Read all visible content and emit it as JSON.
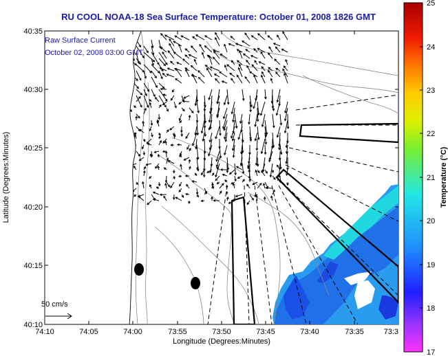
{
  "title": "RU COOL  NOAA-18  Sea Surface Temperature:  October 01, 2008 1826 GMT",
  "overlay": {
    "line1": "Raw Surface Current",
    "line2": "October 02, 2008 03:00 GMT"
  },
  "scale_label": "50 cm/s",
  "chart_data": {
    "type": "heatmap",
    "title": "RU COOL  NOAA-18  Sea Surface Temperature:  October 01, 2008 1826 GMT",
    "xlabel": "Longitude (Degrees:Minutes)",
    "ylabel": "Latitude (Degrees:Minutes)",
    "x_ticks": [
      "74:10",
      "74:05",
      "74:00",
      "73:55",
      "73:50",
      "73:45",
      "73:40",
      "73:35",
      "73:3"
    ],
    "y_ticks": [
      "40:35",
      "40:30",
      "40:25",
      "40:20",
      "40:15",
      "40:10"
    ],
    "colorbar": {
      "label": "Temperature (°C)",
      "ticks": [
        "25",
        "24",
        "23",
        "22",
        "21",
        "20",
        "19",
        "18",
        "17"
      ],
      "range": [
        17,
        25
      ]
    }
  },
  "colors": {
    "title": "#1a1aa8",
    "frame": "#000000"
  }
}
